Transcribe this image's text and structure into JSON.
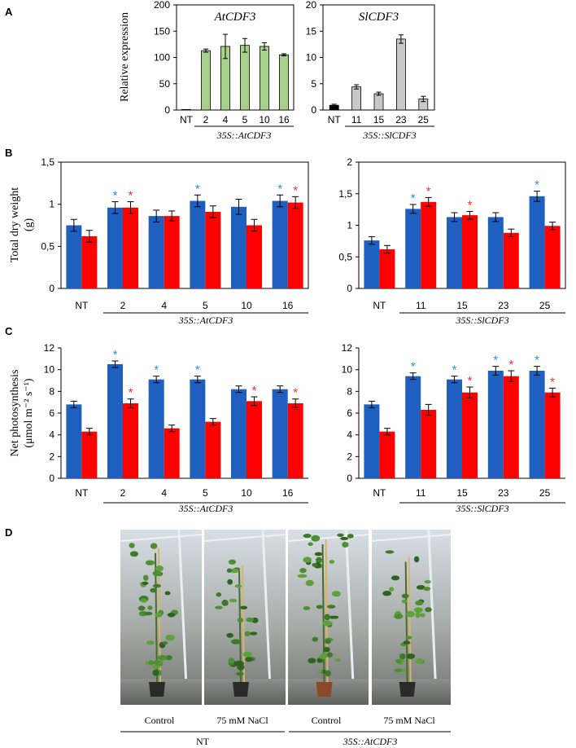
{
  "panel_labels": [
    "A",
    "B",
    "C",
    "D"
  ],
  "colors": {
    "blue": "#1f5fbf",
    "red": "#ff0000",
    "green": "#a9d18e",
    "grey": "#c8c8c8",
    "black": "#000000",
    "star_blue": "#2e8fd6",
    "star_red": "#ff2a2a"
  },
  "chart_data": [
    {
      "id": "A1",
      "type": "bar",
      "title": "AtCDF3",
      "ylabel": "Relative expression",
      "ylim": [
        0,
        200
      ],
      "yticks": [
        "0",
        "50",
        "100",
        "150",
        "200"
      ],
      "ytick_values": [
        0,
        50,
        100,
        150,
        200
      ],
      "categories": [
        "NT",
        "2",
        "4",
        "5",
        "10",
        "16"
      ],
      "series": [
        {
          "name": "expression",
          "values": [
            1,
            113,
            121,
            123,
            121,
            105
          ],
          "errors": [
            0,
            3,
            23,
            13,
            7,
            2
          ],
          "colors": [
            "black",
            "green",
            "green",
            "green",
            "green",
            "green"
          ]
        }
      ],
      "group_label": "35S::AtCDF3"
    },
    {
      "id": "A2",
      "type": "bar",
      "title": "SlCDF3",
      "ylabel": "",
      "ylim": [
        0,
        20
      ],
      "yticks": [
        "0",
        "5",
        "10",
        "15",
        "20"
      ],
      "ytick_values": [
        0,
        5,
        10,
        15,
        20
      ],
      "categories": [
        "NT",
        "11",
        "15",
        "23",
        "25"
      ],
      "series": [
        {
          "name": "expression",
          "values": [
            0.9,
            4.4,
            3.1,
            13.5,
            2.1
          ],
          "errors": [
            0.2,
            0.4,
            0.3,
            0.8,
            0.5
          ],
          "colors": [
            "black",
            "grey",
            "grey",
            "grey",
            "grey"
          ]
        }
      ],
      "group_label": "35S::SlCDF3"
    },
    {
      "id": "B1",
      "type": "bar",
      "ylabel": "Total dry weight (g)",
      "ylim": [
        0,
        1.5
      ],
      "yticks": [
        "0",
        "0,5",
        "1",
        "1,5"
      ],
      "ytick_values": [
        0,
        0.5,
        1,
        1.5
      ],
      "categories": [
        "NT",
        "2",
        "4",
        "5",
        "10",
        "16"
      ],
      "series": [
        {
          "name": "Control",
          "color": "blue",
          "values": [
            0.75,
            0.96,
            0.86,
            1.04,
            0.97,
            1.04
          ],
          "errors": [
            0.07,
            0.07,
            0.07,
            0.07,
            0.09,
            0.07
          ],
          "stars": [
            false,
            true,
            false,
            true,
            false,
            true
          ]
        },
        {
          "name": "NaCl",
          "color": "red",
          "values": [
            0.62,
            0.96,
            0.86,
            0.91,
            0.75,
            1.02
          ],
          "errors": [
            0.07,
            0.07,
            0.06,
            0.07,
            0.07,
            0.07
          ],
          "stars": [
            false,
            true,
            false,
            false,
            false,
            true
          ]
        }
      ],
      "group_label": "35S::AtCDF3"
    },
    {
      "id": "B2",
      "type": "bar",
      "ylabel": "",
      "ylim": [
        0,
        2
      ],
      "yticks": [
        "0",
        "0,5",
        "1",
        "1,5",
        "2"
      ],
      "ytick_values": [
        0,
        0.5,
        1,
        1.5,
        2
      ],
      "categories": [
        "NT",
        "11",
        "15",
        "23",
        "25"
      ],
      "series": [
        {
          "name": "Control",
          "color": "blue",
          "values": [
            0.76,
            1.26,
            1.13,
            1.13,
            1.46
          ],
          "errors": [
            0.06,
            0.07,
            0.07,
            0.07,
            0.08
          ],
          "stars": [
            false,
            true,
            false,
            false,
            true
          ]
        },
        {
          "name": "NaCl",
          "color": "red",
          "values": [
            0.62,
            1.37,
            1.16,
            0.88,
            0.99
          ],
          "errors": [
            0.06,
            0.07,
            0.06,
            0.06,
            0.06
          ],
          "stars": [
            false,
            true,
            true,
            false,
            false
          ]
        }
      ],
      "group_label": "35S::SlCDF3"
    },
    {
      "id": "C1",
      "type": "bar",
      "ylabel": "Net photosynthesis (μmol m⁻² s⁻¹)",
      "ylim": [
        0,
        12
      ],
      "yticks": [
        "0",
        "2",
        "4",
        "6",
        "8",
        "10",
        "12"
      ],
      "ytick_values": [
        0,
        2,
        4,
        6,
        8,
        10,
        12
      ],
      "categories": [
        "NT",
        "2",
        "4",
        "5",
        "10",
        "16"
      ],
      "series": [
        {
          "name": "Control",
          "color": "blue",
          "values": [
            6.8,
            10.5,
            9.1,
            9.1,
            8.2,
            8.2
          ],
          "errors": [
            0.3,
            0.3,
            0.3,
            0.3,
            0.3,
            0.3
          ],
          "stars": [
            false,
            true,
            true,
            true,
            false,
            false
          ]
        },
        {
          "name": "NaCl",
          "color": "red",
          "values": [
            4.3,
            6.9,
            4.6,
            5.2,
            7.1,
            6.9
          ],
          "errors": [
            0.3,
            0.4,
            0.3,
            0.3,
            0.4,
            0.4
          ],
          "stars": [
            false,
            true,
            false,
            false,
            true,
            true
          ]
        }
      ],
      "group_label": "35S::AtCDF3"
    },
    {
      "id": "C2",
      "type": "bar",
      "ylabel": "",
      "ylim": [
        0,
        12
      ],
      "yticks": [
        "0",
        "2",
        "4",
        "6",
        "8",
        "10",
        "12"
      ],
      "ytick_values": [
        0,
        2,
        4,
        6,
        8,
        10,
        12
      ],
      "categories": [
        "NT",
        "11",
        "15",
        "23",
        "25"
      ],
      "series": [
        {
          "name": "Control",
          "color": "blue",
          "values": [
            6.8,
            9.4,
            9.1,
            9.9,
            9.9
          ],
          "errors": [
            0.3,
            0.3,
            0.3,
            0.4,
            0.4
          ],
          "stars": [
            false,
            true,
            true,
            true,
            true
          ]
        },
        {
          "name": "NaCl",
          "color": "red",
          "values": [
            4.3,
            6.3,
            7.9,
            9.4,
            7.9
          ],
          "errors": [
            0.3,
            0.5,
            0.5,
            0.5,
            0.4
          ],
          "stars": [
            false,
            false,
            true,
            true,
            true
          ]
        }
      ],
      "group_label": "35S::SlCDF3"
    }
  ],
  "photos": {
    "labels": [
      "Control",
      "75 mM NaCl",
      "Control",
      "75 mM NaCl"
    ],
    "groups": [
      "NT",
      "35S::AtCDF3"
    ]
  }
}
